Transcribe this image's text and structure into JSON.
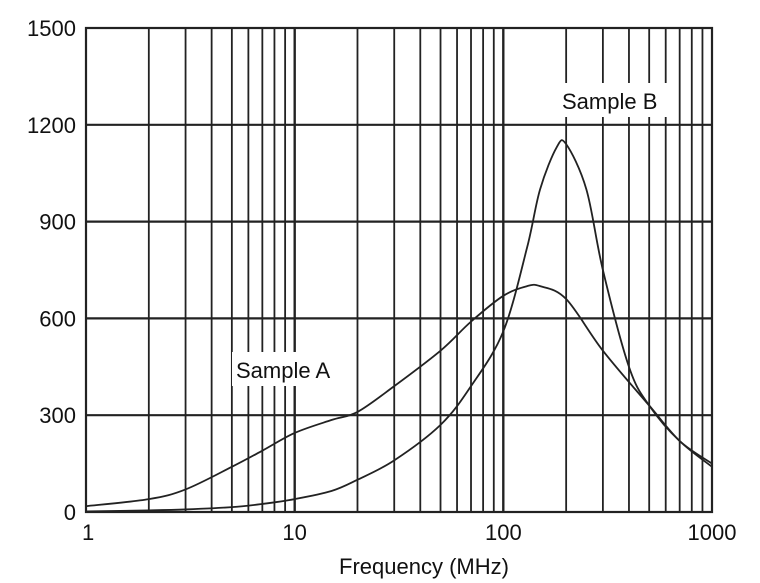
{
  "chart_data": {
    "type": "line",
    "title": "",
    "xlabel": "Frequency (MHz)",
    "ylabel": "",
    "x_scale": "log",
    "xlim": [
      1,
      1000
    ],
    "ylim": [
      0,
      1500
    ],
    "grid": true,
    "legend": "none",
    "x_ticks": [
      1,
      10,
      100,
      1000
    ],
    "x_tick_labels": [
      "1",
      "10",
      "100",
      "1000"
    ],
    "y_ticks": [
      0,
      300,
      600,
      900,
      1200,
      1500
    ],
    "y_tick_labels": [
      "0",
      "300",
      "600",
      "900",
      "1200",
      "1500"
    ],
    "series": [
      {
        "name": "Sample A",
        "x": [
          1,
          2,
          3,
          5,
          7,
          10,
          15,
          20,
          30,
          50,
          70,
          100,
          130,
          150,
          200,
          300,
          500,
          700,
          1000
        ],
        "y": [
          18,
          40,
          70,
          140,
          190,
          245,
          285,
          310,
          390,
          500,
          590,
          670,
          700,
          700,
          660,
          500,
          330,
          220,
          140
        ]
      },
      {
        "name": "Sample B",
        "x": [
          1,
          2,
          3,
          5,
          7,
          10,
          15,
          20,
          30,
          50,
          70,
          100,
          130,
          150,
          180,
          200,
          250,
          300,
          400,
          500,
          700,
          1000
        ],
        "y": [
          2,
          5,
          8,
          15,
          25,
          40,
          65,
          100,
          160,
          270,
          390,
          560,
          820,
          1000,
          1130,
          1140,
          1000,
          750,
          450,
          330,
          220,
          150
        ]
      }
    ],
    "annotations": [
      "Sample A",
      "Sample B"
    ],
    "color": "#222222"
  }
}
